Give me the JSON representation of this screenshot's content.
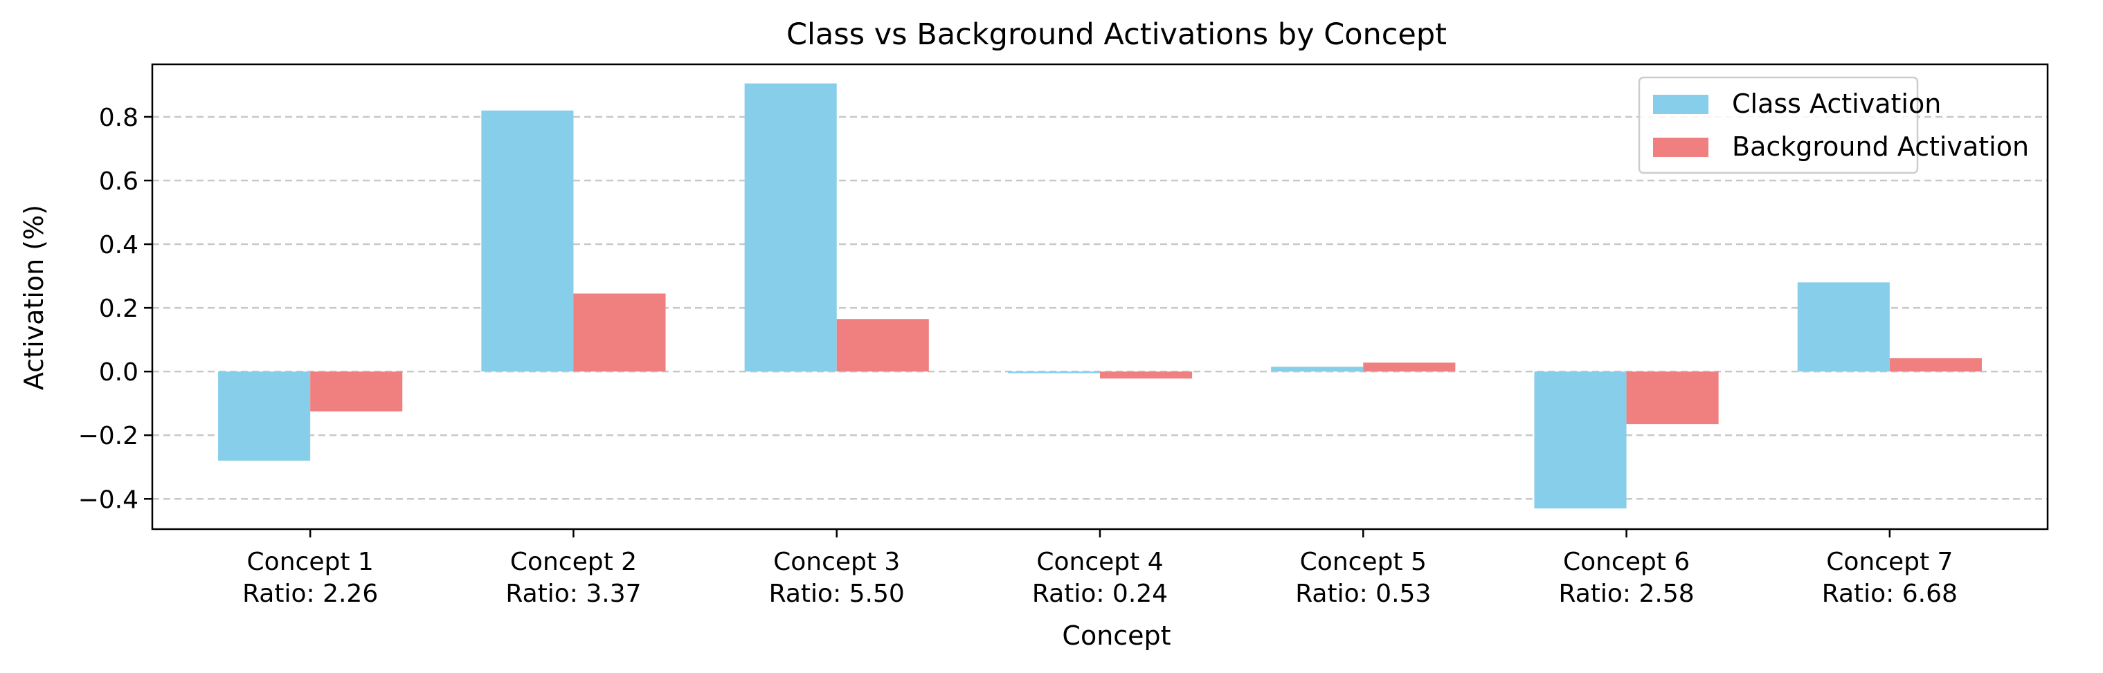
{
  "chart_data": {
    "type": "bar",
    "title": "Class vs Background Activations by Concept",
    "xlabel": "Concept",
    "ylabel": "Activation (%)",
    "categories": [
      "Concept 1",
      "Concept 2",
      "Concept 3",
      "Concept 4",
      "Concept 5",
      "Concept 6",
      "Concept 7"
    ],
    "category_sublabels": [
      "Ratio: 2.26",
      "Ratio: 3.37",
      "Ratio: 5.50",
      "Ratio: 0.24",
      "Ratio: 0.53",
      "Ratio: 2.58",
      "Ratio: 6.68"
    ],
    "series": [
      {
        "name": "Class Activation",
        "color": "#87CEEB",
        "values": [
          -0.28,
          0.82,
          0.905,
          -0.005,
          0.015,
          -0.43,
          0.28
        ]
      },
      {
        "name": "Background Activation",
        "color": "#F08080",
        "values": [
          -0.125,
          0.245,
          0.165,
          -0.022,
          0.028,
          -0.165,
          0.042
        ]
      }
    ],
    "ylim": [
      -0.495,
      0.965
    ],
    "yticks": [
      -0.4,
      -0.2,
      0.0,
      0.2,
      0.4,
      0.6,
      0.8
    ],
    "ytick_labels": [
      "−0.4",
      "−0.2",
      "0.0",
      "0.2",
      "0.4",
      "0.6",
      "0.8"
    ],
    "grid": {
      "axis": "y",
      "style": "dashed",
      "color": "#c8c8c8"
    },
    "legend_position": "top-right"
  }
}
